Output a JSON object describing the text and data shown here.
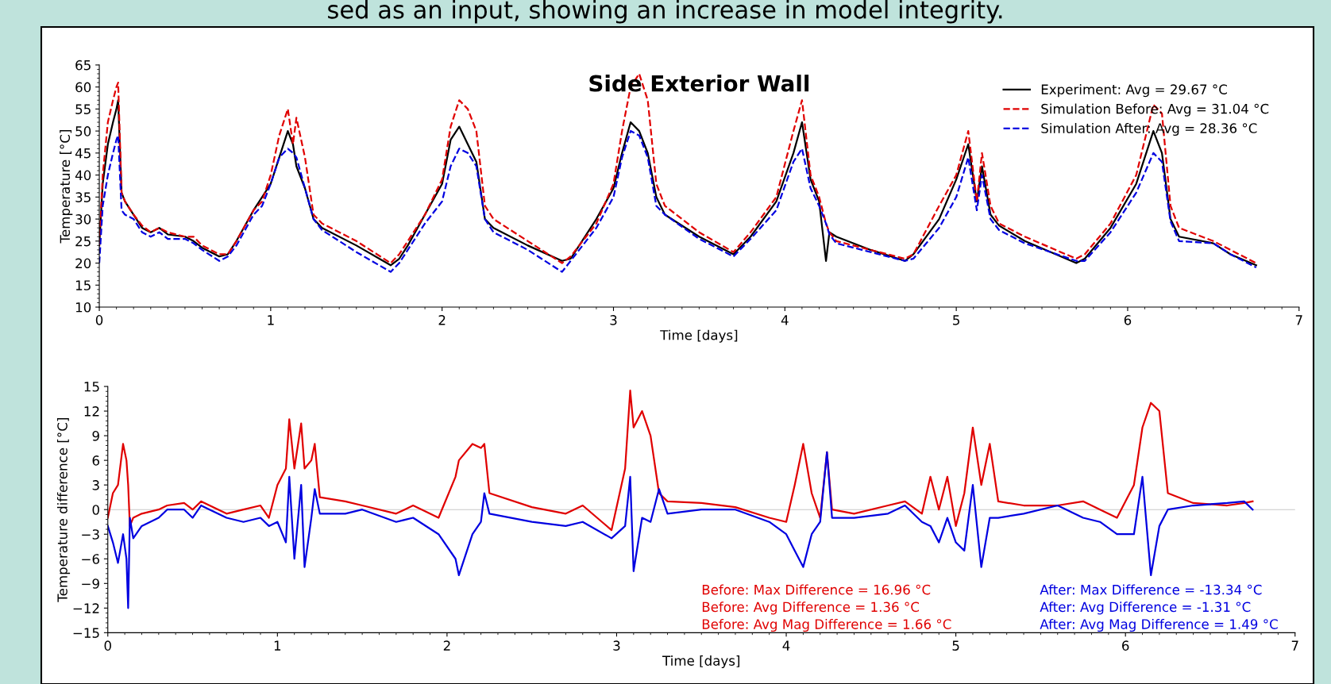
{
  "chart_data": [
    {
      "type": "line",
      "title": "Side Exterior Wall",
      "xlabel": "Time [days]",
      "ylabel": "Temperature [°C]",
      "annotations": [
        "sed as an input, showing an increase in model integrity."
      ],
      "x": [
        0,
        0.02,
        0.05,
        0.08,
        0.1,
        0.11,
        0.13,
        0.15,
        0.2,
        0.25,
        0.3,
        0.35,
        0.4,
        0.5,
        0.55,
        0.6,
        0.7,
        0.75,
        0.8,
        0.9,
        0.95,
        1.0,
        1.05,
        1.1,
        1.13,
        1.15,
        1.2,
        1.25,
        1.3,
        1.5,
        1.7,
        1.75,
        1.8,
        1.9,
        2.0,
        2.05,
        2.1,
        2.15,
        2.2,
        2.25,
        2.3,
        2.5,
        2.7,
        2.75,
        2.9,
        3.0,
        3.05,
        3.1,
        3.15,
        3.2,
        3.25,
        3.3,
        3.5,
        3.7,
        3.8,
        3.95,
        4.05,
        4.1,
        4.15,
        4.2,
        4.24,
        4.26,
        4.3,
        4.5,
        4.7,
        4.75,
        4.9,
        5.0,
        5.07,
        5.12,
        5.15,
        5.2,
        5.25,
        5.4,
        5.7,
        5.75,
        5.9,
        6.05,
        6.15,
        6.2,
        6.25,
        6.3,
        6.5,
        6.6,
        6.75
      ],
      "series": [
        {
          "name": "Experiment: Avg = 29.67 °C",
          "color": "#000000",
          "line_style": "solid",
          "values": [
            24,
            38,
            47,
            52,
            55,
            57,
            36,
            34,
            31,
            28,
            27,
            28,
            26.5,
            26,
            25,
            23.5,
            21.5,
            22,
            25,
            32,
            35,
            38,
            44,
            50,
            47,
            42,
            37,
            30,
            28,
            24,
            19.5,
            21,
            24,
            31,
            38,
            48,
            51,
            47,
            43,
            30,
            28,
            24,
            20.5,
            21,
            30,
            37,
            45,
            52,
            50,
            45,
            35,
            31,
            26,
            22,
            26,
            34,
            45,
            52,
            39,
            34,
            20.5,
            27,
            26,
            23,
            20.5,
            22,
            30,
            39,
            47,
            34,
            42,
            31,
            28.5,
            25,
            20,
            21,
            28,
            38,
            50,
            45,
            30,
            26,
            24.5,
            22,
            19.5
          ]
        },
        {
          "name": "Simulation Before: Avg = 31.04 °C",
          "color": "#e00000",
          "line_style": "dashed",
          "values": [
            24,
            40,
            52,
            57,
            60,
            61,
            36,
            34,
            31,
            28.5,
            27,
            28,
            27,
            26,
            26,
            24,
            22,
            22,
            25,
            32,
            34,
            40,
            49,
            55,
            47,
            53,
            44,
            31,
            29,
            25,
            20,
            22,
            25,
            31,
            39,
            51,
            57,
            55,
            50,
            33,
            30,
            25,
            20,
            21.5,
            29,
            38,
            50,
            60,
            63,
            57,
            38,
            33,
            27,
            22.5,
            27,
            35,
            50,
            57,
            40,
            35,
            29,
            27,
            25,
            23,
            21,
            22,
            33,
            40,
            50,
            34,
            45,
            33,
            29,
            26,
            21,
            22,
            29,
            40,
            56,
            54,
            33,
            28,
            25,
            23,
            20
          ]
        },
        {
          "name": "Simulation After: Avg = 28.36 °C",
          "color": "#0000e0",
          "line_style": "dashed",
          "values": [
            20,
            33,
            40,
            45,
            48,
            49,
            32,
            31,
            30,
            27,
            26,
            27,
            25.5,
            25.5,
            24.5,
            23,
            20.5,
            21.5,
            24,
            31,
            33,
            38,
            44,
            46,
            45,
            44,
            37,
            30,
            27.5,
            22.5,
            18,
            20,
            23,
            29,
            34,
            42,
            46,
            45,
            42,
            30,
            27,
            23,
            18,
            20.5,
            28,
            35,
            44,
            50,
            49,
            44,
            33,
            31,
            25.5,
            21.5,
            25.5,
            32,
            43,
            46,
            37,
            33,
            29,
            26.5,
            24.5,
            22.5,
            20.5,
            21,
            28,
            35,
            44,
            32,
            40,
            30,
            27.5,
            24.5,
            20.5,
            20.5,
            27,
            36,
            45,
            43,
            29.5,
            25,
            24.5,
            22,
            19
          ]
        }
      ],
      "xlim": [
        0,
        7
      ],
      "xticks": [
        0,
        1,
        2,
        3,
        4,
        5,
        6,
        7
      ],
      "ylim": [
        10,
        65
      ],
      "yticks": [
        10,
        15,
        20,
        25,
        30,
        35,
        40,
        45,
        50,
        55,
        60,
        65
      ],
      "grid": false,
      "legend": "top right"
    },
    {
      "type": "line",
      "xlabel": "Time [days]",
      "ylabel": "Temperature difference [°C]",
      "annotations": [
        "Before: Max Difference = 16.96 °C",
        "Before: Avg Difference = 1.36 °C",
        "Before: Avg Mag Difference = 1.66 °C",
        "After: Max Difference = -13.34 °C",
        "After: Avg Difference = -1.31 °C",
        "After: Avg Mag Difference = 1.49 °C"
      ],
      "x": [
        0,
        0.03,
        0.06,
        0.09,
        0.11,
        0.12,
        0.13,
        0.15,
        0.2,
        0.3,
        0.35,
        0.45,
        0.5,
        0.55,
        0.7,
        0.8,
        0.9,
        0.95,
        1.0,
        1.05,
        1.07,
        1.1,
        1.14,
        1.16,
        1.2,
        1.22,
        1.25,
        1.4,
        1.5,
        1.7,
        1.8,
        1.95,
        2.05,
        2.07,
        2.15,
        2.2,
        2.22,
        2.25,
        2.5,
        2.7,
        2.8,
        2.97,
        3.05,
        3.08,
        3.1,
        3.15,
        3.2,
        3.25,
        3.3,
        3.5,
        3.7,
        3.9,
        4.0,
        4.05,
        4.1,
        4.15,
        4.2,
        4.24,
        4.27,
        4.4,
        4.6,
        4.7,
        4.8,
        4.85,
        4.9,
        4.95,
        5.0,
        5.05,
        5.1,
        5.15,
        5.2,
        5.25,
        5.4,
        5.6,
        5.75,
        5.85,
        5.95,
        6.05,
        6.1,
        6.15,
        6.2,
        6.25,
        6.4,
        6.6,
        6.7,
        6.75
      ],
      "series": [
        {
          "color": "#e00000",
          "line_style": "solid",
          "values": [
            -1,
            2,
            3,
            8,
            6,
            3,
            -2,
            -1,
            -0.5,
            0,
            0.5,
            0.8,
            0,
            1,
            -0.5,
            0,
            0.5,
            -1,
            3,
            5,
            11,
            5,
            10.5,
            5,
            6,
            8,
            1.5,
            1,
            0.5,
            -0.5,
            0.5,
            -1,
            4,
            6,
            8,
            7.5,
            8,
            2,
            0.3,
            -0.5,
            0.5,
            -2.5,
            5,
            14.5,
            10,
            12,
            9,
            2,
            1,
            0.8,
            0.3,
            -1,
            -1.5,
            3,
            8,
            2,
            -1,
            7,
            0,
            -0.5,
            0.5,
            1,
            -0.5,
            4,
            0,
            4,
            -2,
            2,
            10,
            3,
            8,
            1,
            0.5,
            0.5,
            1,
            0,
            -1,
            3,
            10,
            13,
            12,
            2,
            0.8,
            0.5,
            0.8,
            1
          ]
        },
        {
          "color": "#0000e0",
          "line_style": "solid",
          "values": [
            -2,
            -4,
            -6.5,
            -3,
            -6,
            -12,
            -1,
            -3.5,
            -2,
            -1,
            0,
            0,
            -1,
            0.5,
            -1,
            -1.5,
            -1,
            -2,
            -1.5,
            -4,
            4,
            -6,
            3,
            -7,
            -1,
            2.5,
            -0.5,
            -0.5,
            0,
            -1.5,
            -1,
            -3,
            -6,
            -8,
            -3,
            -1.5,
            2,
            -0.5,
            -1.5,
            -2,
            -1.5,
            -3.5,
            -2,
            4,
            -7.5,
            -1,
            -1.5,
            2.5,
            -0.5,
            0,
            0,
            -1.5,
            -3,
            -5,
            -7,
            -3,
            -1.5,
            7,
            -1,
            -1,
            -0.5,
            0.5,
            -1.5,
            -2,
            -4,
            -1,
            -4,
            -5,
            3,
            -7,
            -1,
            -1,
            -0.5,
            0.5,
            -1,
            -1.5,
            -3,
            -3,
            4,
            -8,
            -2,
            0,
            0.5,
            0.8,
            1,
            0
          ]
        }
      ],
      "ref_lines": [
        {
          "axis": "y",
          "value": 0,
          "color": "#c8c8c8"
        }
      ],
      "xlim": [
        0,
        7
      ],
      "xticks": [
        0,
        1,
        2,
        3,
        4,
        5,
        6,
        7
      ],
      "ylim": [
        -15,
        15
      ],
      "yticks": [
        -15,
        -12,
        -9,
        -6,
        -3,
        0,
        3,
        6,
        9,
        12,
        15
      ],
      "grid": false
    }
  ]
}
